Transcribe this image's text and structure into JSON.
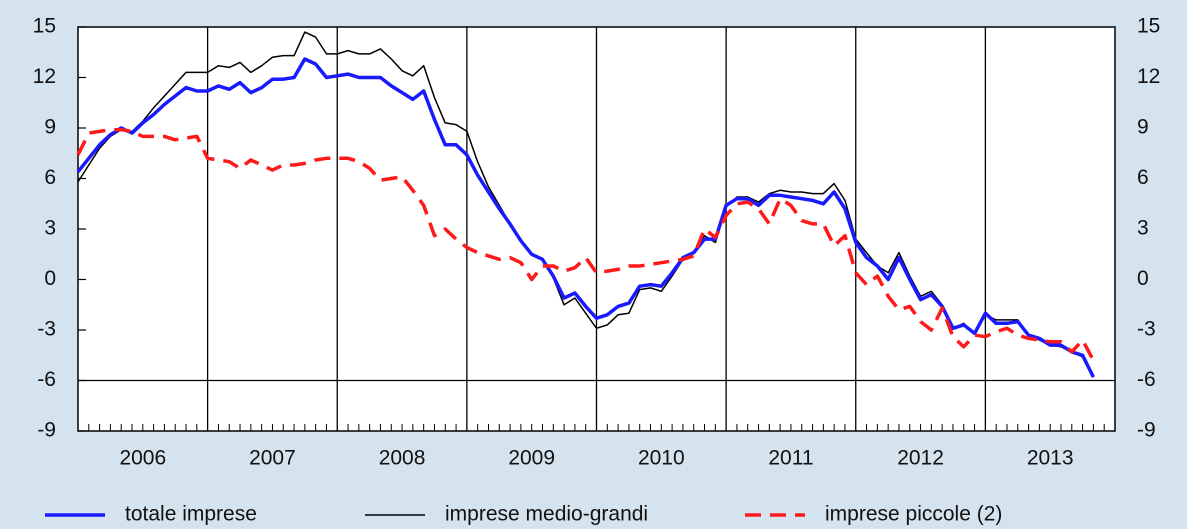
{
  "chart_data": {
    "type": "line",
    "x": [
      2006,
      2006.083,
      2006.167,
      2006.25,
      2006.333,
      2006.417,
      2006.5,
      2006.583,
      2006.667,
      2006.75,
      2006.833,
      2006.917,
      2007,
      2007.083,
      2007.167,
      2007.25,
      2007.333,
      2007.417,
      2007.5,
      2007.583,
      2007.667,
      2007.75,
      2007.833,
      2007.917,
      2008,
      2008.083,
      2008.167,
      2008.25,
      2008.333,
      2008.417,
      2008.5,
      2008.583,
      2008.667,
      2008.75,
      2008.833,
      2008.917,
      2009,
      2009.083,
      2009.167,
      2009.25,
      2009.333,
      2009.417,
      2009.5,
      2009.583,
      2009.667,
      2009.75,
      2009.833,
      2009.917,
      2010,
      2010.083,
      2010.167,
      2010.25,
      2010.333,
      2010.417,
      2010.5,
      2010.583,
      2010.667,
      2010.75,
      2010.833,
      2010.917,
      2011,
      2011.083,
      2011.167,
      2011.25,
      2011.333,
      2011.417,
      2011.5,
      2011.583,
      2011.667,
      2011.75,
      2011.833,
      2011.917,
      2012,
      2012.083,
      2012.167,
      2012.25,
      2012.333,
      2012.417,
      2012.5,
      2012.583,
      2012.667,
      2012.75,
      2012.833,
      2012.917,
      2013,
      2013.083,
      2013.167,
      2013.25,
      2013.333,
      2013.417,
      2013.5,
      2013.583,
      2013.667,
      2013.75,
      2013.833
    ],
    "series": [
      {
        "name": "totale imprese",
        "color": "#1a1aff",
        "width": 3.5,
        "dash": false,
        "values": [
          6.4,
          7.2,
          8.0,
          8.6,
          9.0,
          8.7,
          9.3,
          9.8,
          10.4,
          10.9,
          11.4,
          11.2,
          11.2,
          11.5,
          11.3,
          11.7,
          11.1,
          11.4,
          11.9,
          11.9,
          12.0,
          13.1,
          12.8,
          12.0,
          12.1,
          12.2,
          12.0,
          12.0,
          12.0,
          11.5,
          11.1,
          10.7,
          11.2,
          9.5,
          8.0,
          8.0,
          7.4,
          6.2,
          5.2,
          4.2,
          3.3,
          2.3,
          1.5,
          1.2,
          0.2,
          -1.1,
          -0.8,
          -1.6,
          -2.3,
          -2.1,
          -1.6,
          -1.4,
          -0.4,
          -0.3,
          -0.4,
          0.4,
          1.3,
          1.6,
          2.4,
          2.4,
          4.4,
          4.8,
          4.8,
          4.4,
          5.0,
          5.0,
          4.9,
          4.8,
          4.7,
          4.5,
          5.2,
          4.2,
          2.2,
          1.3,
          0.8,
          0.0,
          1.3,
          0.0,
          -1.2,
          -0.9,
          -1.6,
          -2.9,
          -2.7,
          -3.2,
          -2.0,
          -2.6,
          -2.6,
          -2.5,
          -3.3,
          -3.5,
          -3.9,
          -3.9,
          -4.3,
          -4.5,
          -5.8
        ]
      },
      {
        "name": "imprese medio-grandi",
        "color": "#000000",
        "width": 1.5,
        "dash": false,
        "values": [
          5.8,
          6.8,
          7.8,
          8.5,
          8.9,
          8.8,
          9.4,
          10.2,
          10.9,
          11.6,
          12.3,
          12.3,
          12.3,
          12.7,
          12.6,
          12.9,
          12.3,
          12.7,
          13.2,
          13.3,
          13.3,
          14.7,
          14.4,
          13.4,
          13.4,
          13.6,
          13.4,
          13.4,
          13.7,
          13.1,
          12.4,
          12.1,
          12.7,
          10.8,
          9.3,
          9.2,
          8.8,
          7.0,
          5.5,
          4.4,
          3.3,
          2.3,
          1.5,
          1.2,
          0.1,
          -1.5,
          -1.1,
          -2.0,
          -2.9,
          -2.7,
          -2.1,
          -2.0,
          -0.6,
          -0.5,
          -0.7,
          0.2,
          1.2,
          1.6,
          2.6,
          2.2,
          4.3,
          4.9,
          4.9,
          4.6,
          5.1,
          5.3,
          5.2,
          5.2,
          5.1,
          5.1,
          5.7,
          4.7,
          2.4,
          1.6,
          0.8,
          0.4,
          1.6,
          0.2,
          -1.0,
          -0.7,
          -1.5,
          -2.9,
          -2.6,
          -3.2,
          -2.1,
          -2.4,
          -2.4,
          -2.4,
          -3.3,
          -3.6,
          -3.9,
          -4.0,
          -4.3,
          -4.6,
          -5.8
        ]
      },
      {
        "name": "imprese piccole (2)",
        "color": "#ff1a1a",
        "width": 3.5,
        "dash": true,
        "values": [
          7.4,
          8.7,
          8.8,
          8.9,
          8.9,
          8.8,
          8.5,
          8.5,
          8.5,
          8.3,
          8.4,
          8.5,
          7.2,
          7.1,
          7.0,
          6.6,
          7.1,
          6.8,
          6.5,
          6.8,
          6.8,
          6.9,
          7.1,
          7.2,
          7.2,
          7.2,
          7.0,
          6.6,
          5.9,
          6.0,
          6.1,
          5.3,
          4.4,
          2.6,
          3.0,
          2.4,
          1.9,
          1.6,
          1.4,
          1.2,
          1.3,
          1.0,
          0.0,
          0.8,
          0.8,
          0.5,
          0.7,
          1.3,
          0.4,
          0.5,
          0.6,
          0.8,
          0.8,
          0.9,
          1.0,
          1.1,
          1.2,
          1.4,
          3.0,
          2.5,
          3.8,
          4.5,
          4.6,
          4.2,
          3.3,
          4.8,
          4.4,
          3.5,
          3.3,
          3.3,
          2.0,
          2.6,
          0.4,
          -0.3,
          0.2,
          -1.0,
          -1.8,
          -1.6,
          -2.5,
          -3.0,
          -1.7,
          -3.4,
          -4.0,
          -3.3,
          -3.4,
          -3.1,
          -2.9,
          -3.3,
          -3.5,
          -3.6,
          -3.7,
          -3.7,
          -4.3,
          -3.6,
          -4.8
        ]
      }
    ],
    "xlim": [
      2006,
      2014
    ],
    "xticks": [
      {
        "value": 2006.5,
        "label": "2006"
      },
      {
        "value": 2007.5,
        "label": "2007"
      },
      {
        "value": 2008.5,
        "label": "2008"
      },
      {
        "value": 2009.5,
        "label": "2009"
      },
      {
        "value": 2010.5,
        "label": "2010"
      },
      {
        "value": 2011.5,
        "label": "2011"
      },
      {
        "value": 2012.5,
        "label": "2012"
      },
      {
        "value": 2013.5,
        "label": "2013"
      }
    ],
    "ylim": [
      -9,
      15
    ],
    "yticks": [
      -9,
      -6,
      -3,
      0,
      3,
      6,
      9,
      12,
      15
    ],
    "reference_line": -6,
    "legend": "bottom"
  }
}
